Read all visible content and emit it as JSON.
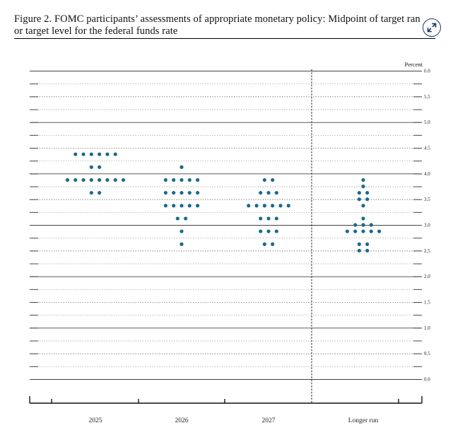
{
  "figure": {
    "caption_line1": "Figure 2.  FOMC participants’ assessments of appropriate monetary policy:  Midpoint of target ran",
    "caption_line2": "or target level for the federal funds rate",
    "expand_icon": "expand-arrows-icon"
  },
  "chart_data": {
    "type": "scatter",
    "title": "Figure 2. FOMC participants’ assessments of appropriate monetary policy: Midpoint of target range or target level for the federal funds rate",
    "ylabel": "Percent",
    "ylim": [
      0,
      6
    ],
    "yticks": [
      "0.0",
      "0.5",
      "1.0",
      "1.5",
      "2.0",
      "2.5",
      "3.0",
      "3.5",
      "4.0",
      "4.5",
      "5.0",
      "5.5",
      "6.0"
    ],
    "categories": [
      "2025",
      "2026",
      "2027",
      "Longer run"
    ],
    "grid": true,
    "dot_color": "#1a6b8c",
    "groups": [
      {
        "category": "2025",
        "levels": [
          {
            "rate": 4.375,
            "count": 6
          },
          {
            "rate": 4.125,
            "count": 2
          },
          {
            "rate": 3.875,
            "count": 8
          },
          {
            "rate": 3.625,
            "count": 2
          }
        ]
      },
      {
        "category": "2026",
        "levels": [
          {
            "rate": 4.125,
            "count": 1
          },
          {
            "rate": 3.875,
            "count": 5
          },
          {
            "rate": 3.625,
            "count": 5
          },
          {
            "rate": 3.375,
            "count": 5
          },
          {
            "rate": 3.125,
            "count": 2
          },
          {
            "rate": 2.875,
            "count": 1
          },
          {
            "rate": 2.625,
            "count": 1
          }
        ]
      },
      {
        "category": "2027",
        "levels": [
          {
            "rate": 3.875,
            "count": 2
          },
          {
            "rate": 3.625,
            "count": 3
          },
          {
            "rate": 3.375,
            "count": 6
          },
          {
            "rate": 3.125,
            "count": 3
          },
          {
            "rate": 2.875,
            "count": 3
          },
          {
            "rate": 2.625,
            "count": 2
          }
        ]
      },
      {
        "category": "Longer run",
        "levels": [
          {
            "rate": 3.875,
            "count": 1
          },
          {
            "rate": 3.75,
            "count": 1
          },
          {
            "rate": 3.625,
            "count": 2
          },
          {
            "rate": 3.5,
            "count": 2
          },
          {
            "rate": 3.375,
            "count": 1
          },
          {
            "rate": 3.125,
            "count": 1
          },
          {
            "rate": 3.0,
            "count": 3
          },
          {
            "rate": 2.875,
            "count": 5
          },
          {
            "rate": 2.625,
            "count": 2
          },
          {
            "rate": 2.5,
            "count": 2
          }
        ]
      }
    ]
  }
}
